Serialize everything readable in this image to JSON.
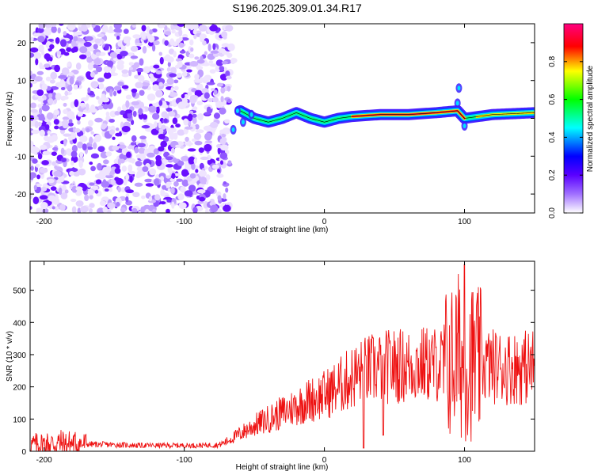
{
  "title": "S196.2025.309.01.34.R17",
  "chart_data": [
    {
      "type": "heatmap",
      "xlabel": "Height of straight line (km)",
      "ylabel": "Frequency (Hz)",
      "xlim": [
        -210,
        150
      ],
      "ylim": [
        -25,
        25
      ],
      "xticks": [
        -200,
        -100,
        0,
        100
      ],
      "yticks": [
        -20,
        -10,
        0,
        10,
        20
      ],
      "colorbar": {
        "label": "Normalized spectral amplitude",
        "range": [
          0,
          1
        ],
        "ticks": [
          0.0,
          0.2,
          0.4,
          0.6,
          0.8
        ],
        "tick_labels": [
          "0.0",
          "0.2",
          "0.4",
          "0.6",
          "0.8"
        ],
        "colormap": [
          "#ffffff",
          "#6a00ff",
          "#0000ff",
          "#00ffff",
          "#00ff00",
          "#ffff00",
          "#ff0000",
          "#ff0080"
        ]
      },
      "noise_region": {
        "x_range": [
          -210,
          -70
        ],
        "freq_range": [
          -25,
          25
        ],
        "amplitude": "0.0-0.2"
      },
      "signal_track": [
        {
          "x": -65,
          "freq": -3
        },
        {
          "x": -60,
          "freq": 2
        },
        {
          "x": -50,
          "freq": 0
        },
        {
          "x": -40,
          "freq": -1
        },
        {
          "x": -30,
          "freq": 0
        },
        {
          "x": -20,
          "freq": 1.5
        },
        {
          "x": -10,
          "freq": 0
        },
        {
          "x": 0,
          "freq": -1
        },
        {
          "x": 10,
          "freq": 0
        },
        {
          "x": 20,
          "freq": 0.5
        },
        {
          "x": 40,
          "freq": 1
        },
        {
          "x": 60,
          "freq": 1
        },
        {
          "x": 80,
          "freq": 1.5
        },
        {
          "x": 95,
          "freq": 2
        },
        {
          "x": 100,
          "freq": 0
        },
        {
          "x": 120,
          "freq": 1
        },
        {
          "x": 150,
          "freq": 1.5
        }
      ],
      "peak_amplitude_x_range": [
        20,
        100
      ]
    },
    {
      "type": "line",
      "color": "#ee1111",
      "xlabel": "Height of straight line (km)",
      "ylabel": "SNR (10 * v/v)",
      "xlim": [
        -210,
        150
      ],
      "ylim": [
        0,
        590
      ],
      "xticks": [
        -200,
        -100,
        0,
        100
      ],
      "yticks": [
        0,
        100,
        200,
        300,
        400,
        500
      ],
      "x": [
        -210,
        -190,
        -170,
        -150,
        -130,
        -110,
        -90,
        -75,
        -70,
        -60,
        -50,
        -40,
        -30,
        -20,
        -10,
        0,
        10,
        20,
        30,
        40,
        50,
        60,
        70,
        80,
        90,
        95,
        100,
        105,
        110,
        120,
        130,
        140,
        150
      ],
      "values": [
        20,
        25,
        22,
        20,
        18,
        18,
        18,
        20,
        30,
        55,
        80,
        100,
        120,
        140,
        160,
        175,
        200,
        230,
        250,
        260,
        265,
        265,
        270,
        270,
        270,
        300,
        270,
        280,
        270,
        265,
        260,
        260,
        265
      ],
      "spikes": [
        {
          "x": 100,
          "value": 580
        },
        {
          "x": 28,
          "value": 10
        },
        {
          "x": 42,
          "value": 50
        }
      ]
    }
  ]
}
